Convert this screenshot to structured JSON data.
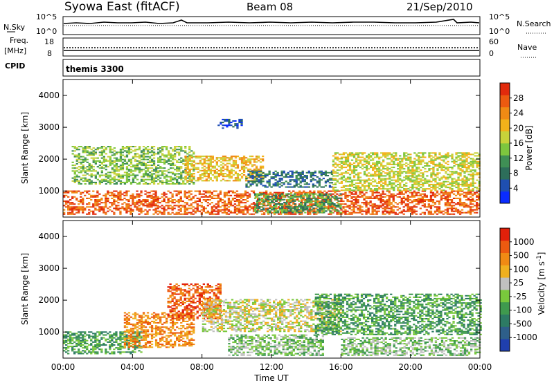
{
  "header": {
    "station": "Syowa East (fitACF)",
    "beam": "Beam 08",
    "date": "21/Sep/2010"
  },
  "top_panels": {
    "nsky": {
      "label": "N.Sky",
      "ticks": [
        "10^5",
        "10^0"
      ],
      "right_ticks": [
        "10^5",
        "10^0"
      ],
      "right_label": "N.Search"
    },
    "freq": {
      "label_line1": "Freq.",
      "label_line2": "[MHz]",
      "ticks": [
        "18",
        "8"
      ],
      "right_ticks": [
        "60",
        "0"
      ],
      "right_label": "Nave"
    },
    "cpid": {
      "label": "CPID",
      "value": "themis 3300"
    }
  },
  "chart_data": [
    {
      "type": "heatmap",
      "title": "",
      "xlabel": "",
      "ylabel": "Slant Range [km]",
      "x_ticks": [
        "00:00",
        "04:00",
        "08:00",
        "12:00",
        "16:00",
        "20:00",
        "00:00"
      ],
      "y_ticks": [
        "1000",
        "2000",
        "3000",
        "4000"
      ],
      "xlim": [
        0,
        24
      ],
      "ylim": [
        180,
        4500
      ],
      "colorbar": {
        "label": "Power [dB]",
        "ticks": [
          "4",
          "8",
          "12",
          "16",
          "20",
          "24",
          "28"
        ],
        "colors": [
          "#0a2cff",
          "#1f4fb0",
          "#2d6e5a",
          "#3f8f55",
          "#7dc63e",
          "#c8d23a",
          "#f2b21a",
          "#f08a14",
          "#ec5a10",
          "#e22a0c"
        ]
      },
      "regions": [
        {
          "t0": 0.0,
          "t1": 24.0,
          "r0": 250,
          "r1": 1000,
          "level": 8
        },
        {
          "t0": 0.5,
          "t1": 7.5,
          "r0": 1200,
          "r1": 2400,
          "level": 4
        },
        {
          "t0": 7.0,
          "t1": 11.5,
          "r0": 1300,
          "r1": 2100,
          "level": 6
        },
        {
          "t0": 8.9,
          "t1": 10.3,
          "r0": 2950,
          "r1": 3250,
          "level": 1
        },
        {
          "t0": 10.5,
          "t1": 15.5,
          "r0": 1100,
          "r1": 1600,
          "level": 2
        },
        {
          "t0": 15.5,
          "t1": 24.0,
          "r0": 1000,
          "r1": 2200,
          "level": 5
        },
        {
          "t0": 11.0,
          "t1": 16.0,
          "r0": 300,
          "r1": 900,
          "level": 3
        }
      ]
    },
    {
      "type": "heatmap",
      "title": "",
      "xlabel": "Time UT",
      "ylabel": "Slant Range [km]",
      "x_ticks": [
        "00:00",
        "04:00",
        "08:00",
        "12:00",
        "16:00",
        "20:00",
        "00:00"
      ],
      "y_ticks": [
        "1000",
        "2000",
        "3000",
        "4000"
      ],
      "xlim": [
        0,
        24
      ],
      "ylim": [
        180,
        4500
      ],
      "colorbar": {
        "label": "Velocity [m s^-1]",
        "ticks": [
          "1000",
          "500",
          "100",
          "25",
          "-25",
          "-100",
          "-500",
          "-1000"
        ],
        "colors": [
          "#1f3fae",
          "#2e5f8a",
          "#2d7b64",
          "#3f9a4e",
          "#79c83c",
          "#c0c0c0",
          "#f0b020",
          "#f08a14",
          "#ec5a10",
          "#e2200a"
        ]
      },
      "regions": [
        {
          "t0": 0.0,
          "t1": 4.5,
          "r0": 300,
          "r1": 1000,
          "level": 3
        },
        {
          "t0": 3.5,
          "t1": 7.5,
          "r0": 500,
          "r1": 1600,
          "level": 7
        },
        {
          "t0": 6.0,
          "t1": 9.0,
          "r0": 1400,
          "r1": 2500,
          "level": 8
        },
        {
          "t0": 8.0,
          "t1": 16.0,
          "r0": 1000,
          "r1": 2000,
          "level": 5
        },
        {
          "t0": 9.5,
          "t1": 15.0,
          "r0": 250,
          "r1": 900,
          "level": 4
        },
        {
          "t0": 14.5,
          "t1": 24.0,
          "r0": 900,
          "r1": 2200,
          "level": 3
        },
        {
          "t0": 16.0,
          "t1": 24.0,
          "r0": 250,
          "r1": 800,
          "level": 4
        }
      ]
    }
  ]
}
